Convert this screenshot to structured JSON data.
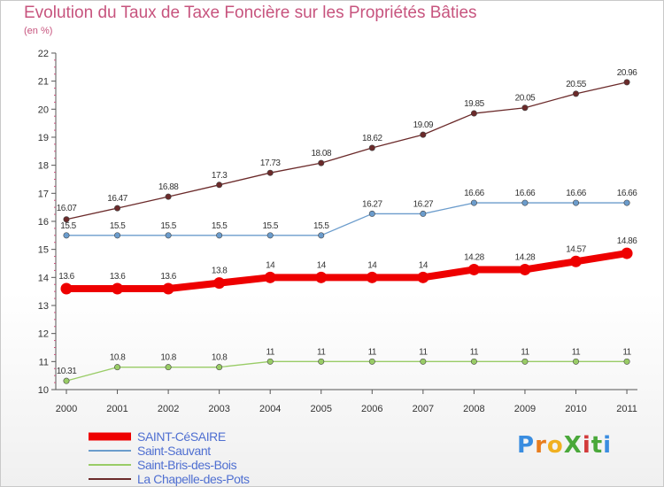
{
  "header": {
    "title": "Evolution du Taux de Taxe Foncière sur les Propriétés Bâties",
    "unit": "(en %)"
  },
  "logo": {
    "text": "ProXiti"
  },
  "chart_data": {
    "type": "line",
    "title": "Evolution du Taux de Taxe Foncière sur les Propriétés Bâties",
    "ylabel": "(en %)",
    "ylim": [
      10,
      22
    ],
    "grid": false,
    "legend_position": "bottom-left",
    "x": [
      "2000",
      "2001",
      "2002",
      "2003",
      "2004",
      "2005",
      "2006",
      "2007",
      "2008",
      "2009",
      "2010",
      "2011"
    ],
    "yticks": [
      "10",
      "11",
      "12",
      "13",
      "14",
      "15",
      "16",
      "17",
      "18",
      "19",
      "20",
      "21",
      "22"
    ],
    "series": [
      {
        "name": "SAINT-CéSAIRE",
        "color": "#ee0000",
        "values": [
          13.6,
          13.6,
          13.6,
          13.8,
          14,
          14,
          14,
          14,
          14.28,
          14.28,
          14.57,
          14.86
        ],
        "labels": [
          "13.6",
          "13.6",
          "13.6",
          "13.8",
          "14",
          "14",
          "14",
          "14",
          "14.28",
          "14.28",
          "14.57",
          "14.86"
        ]
      },
      {
        "name": "Saint-Sauvant",
        "color": "#6b9ccc",
        "values": [
          15.5,
          15.5,
          15.5,
          15.5,
          15.5,
          15.5,
          16.27,
          16.27,
          16.66,
          16.66,
          16.66,
          16.66
        ],
        "labels": [
          "15.5",
          "15.5",
          "15.5",
          "15.5",
          "15.5",
          "15.5",
          "16.27",
          "16.27",
          "16.66",
          "16.66",
          "16.66",
          "16.66"
        ]
      },
      {
        "name": "Saint-Bris-des-Bois",
        "color": "#99cc66",
        "values": [
          10.31,
          10.8,
          10.8,
          10.8,
          11,
          11,
          11,
          11,
          11,
          11,
          11,
          11
        ],
        "labels": [
          "10.31",
          "10.8",
          "10.8",
          "10.8",
          "11",
          "11",
          "11",
          "11",
          "11",
          "11",
          "11",
          "11"
        ]
      },
      {
        "name": "La Chapelle-des-Pots",
        "color": "#6b2a2a",
        "values": [
          16.07,
          16.47,
          16.88,
          17.3,
          17.73,
          18.08,
          18.62,
          19.09,
          19.85,
          20.05,
          20.55,
          20.96
        ],
        "labels": [
          "16.07",
          "16.47",
          "16.88",
          "17.3",
          "17.73",
          "18.08",
          "18.62",
          "19.09",
          "19.85",
          "20.05",
          "20.55",
          "20.96"
        ]
      }
    ]
  }
}
